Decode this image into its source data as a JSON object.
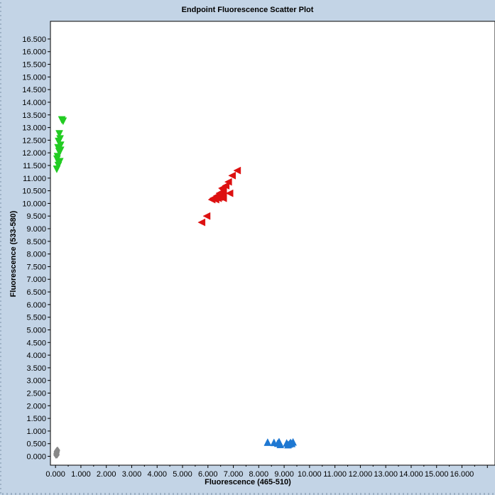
{
  "window": {
    "background": "#c3d4e6",
    "plot_background": "#ffffff"
  },
  "chart_data": {
    "type": "scatter",
    "title": "Endpoint Fluorescence Scatter Plot",
    "xlabel": "Fluorescence (465-510)",
    "ylabel": "Fluorescence (533-580)",
    "xlim": [
      -0.2,
      17.3
    ],
    "ylim": [
      -0.35,
      17.2
    ],
    "xticks": [
      "0.000",
      "1.000",
      "2.000",
      "3.000",
      "4.000",
      "5.000",
      "6.000",
      "7.000",
      "8.000",
      "9.000",
      "10.000",
      "11.000",
      "12.000",
      "13.000",
      "14.000",
      "15.000",
      "16.000"
    ],
    "yticks": [
      "0.000",
      "0.500",
      "1.000",
      "1.500",
      "2.000",
      "2.500",
      "3.000",
      "3.500",
      "4.000",
      "4.500",
      "5.000",
      "5.500",
      "6.000",
      "6.500",
      "7.000",
      "7.500",
      "8.000",
      "8.500",
      "9.000",
      "9.500",
      "10.000",
      "10.500",
      "11.000",
      "11.500",
      "12.000",
      "12.500",
      "13.000",
      "13.500",
      "14.000",
      "14.500",
      "15.000",
      "15.500",
      "16.000",
      "16.500"
    ],
    "grid": false,
    "series": [
      {
        "marker": "triangle-down",
        "color": "#22cc22",
        "x": [
          0.25,
          0.3,
          0.15,
          0.18,
          0.12,
          0.2,
          0.1,
          0.14,
          0.08,
          0.17,
          0.06,
          0.11,
          0.05,
          0.13,
          0.2
        ],
        "y": [
          13.3,
          13.25,
          12.75,
          12.55,
          12.45,
          12.3,
          12.2,
          12.05,
          11.85,
          11.65,
          11.75,
          11.5,
          11.35,
          11.6,
          12.1
        ]
      },
      {
        "marker": "triangle-left",
        "color": "#dd1111",
        "x": [
          7.15,
          6.95,
          6.8,
          6.85,
          6.7,
          6.6,
          6.55,
          6.6,
          6.5,
          6.45,
          6.4,
          6.35,
          6.3,
          6.25,
          6.2,
          6.55,
          6.6,
          6.15,
          5.95,
          5.75,
          6.45
        ],
        "y": [
          11.3,
          11.1,
          10.85,
          10.4,
          10.7,
          10.55,
          10.45,
          10.3,
          10.35,
          10.25,
          10.2,
          10.3,
          10.15,
          10.2,
          10.2,
          10.6,
          10.2,
          10.15,
          9.5,
          9.25,
          10.4
        ]
      },
      {
        "marker": "triangle-up",
        "color": "#1e78d2",
        "x": [
          8.35,
          8.6,
          8.75,
          8.8,
          8.85,
          9.1,
          9.2,
          9.25,
          9.35,
          8.82,
          9.15,
          9.3
        ],
        "y": [
          0.56,
          0.55,
          0.52,
          0.58,
          0.47,
          0.53,
          0.49,
          0.55,
          0.57,
          0.53,
          0.46,
          0.51
        ]
      },
      {
        "marker": "diamond",
        "color": "#888888",
        "x": [
          0.02,
          0.03,
          0.05,
          0.04,
          0.06,
          0.03,
          0.07,
          0.05,
          0.02,
          0.06,
          0.04,
          0.08
        ],
        "y": [
          0.05,
          0.08,
          0.1,
          0.12,
          0.15,
          0.18,
          0.2,
          0.22,
          0.11,
          0.06,
          0.16,
          0.24
        ]
      }
    ]
  }
}
